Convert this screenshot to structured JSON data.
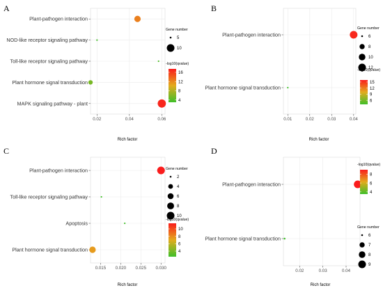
{
  "chart_data": [
    {
      "type": "scatter",
      "panel": "A",
      "xlabel": "Rich factor",
      "xlim": [
        0.016,
        0.062
      ],
      "xticks": [
        0.02,
        0.04,
        0.06
      ],
      "xtick_labels": [
        "0.02",
        "0.04",
        "0.06"
      ],
      "categories": [
        "Plant-pathogen interaction",
        "NOD-like receptor signaling pathway",
        "Toll-like receptor signaling pathway",
        "Plant hormone signal transduction",
        "MAPK signaling pathway - plant"
      ],
      "points": [
        {
          "pathway": "Plant-pathogen interaction",
          "rich_factor": 0.045,
          "gene_number": 8,
          "neg_log10_qvalue": 12.5
        },
        {
          "pathway": "NOD-like receptor signaling pathway",
          "rich_factor": 0.02,
          "gene_number": 1,
          "neg_log10_qvalue": 3.2
        },
        {
          "pathway": "Toll-like receptor signaling pathway",
          "rich_factor": 0.058,
          "gene_number": 2,
          "neg_log10_qvalue": 3.8
        },
        {
          "pathway": "Plant hormone signal transduction",
          "rich_factor": 0.016,
          "gene_number": 6,
          "neg_log10_qvalue": 5.5
        },
        {
          "pathway": "MAPK signaling pathway - plant",
          "rich_factor": 0.06,
          "gene_number": 12,
          "neg_log10_qvalue": 17
        }
      ],
      "size_legend": {
        "title": "Gene number",
        "values": [
          5,
          10
        ],
        "labels": [
          "5",
          "10"
        ]
      },
      "color_legend": {
        "title": "-log10(qvalue)",
        "range": [
          3,
          17.5
        ],
        "ticks": [
          4,
          8,
          12,
          16
        ],
        "labels": [
          "4",
          "8",
          "12",
          "16"
        ]
      }
    },
    {
      "type": "scatter",
      "panel": "B",
      "xlabel": "Rich factor",
      "xlim": [
        0.008,
        0.041
      ],
      "xticks": [
        0.01,
        0.02,
        0.03,
        0.04
      ],
      "xtick_labels": [
        "0.01",
        "0.02",
        "0.03",
        "0.04"
      ],
      "categories": [
        "Plant-pathogen interaction",
        "Plant hormone signal transduction"
      ],
      "points": [
        {
          "pathway": "Plant-pathogen interaction",
          "rich_factor": 0.04,
          "gene_number": 12,
          "neg_log10_qvalue": 15.5
        },
        {
          "pathway": "Plant hormone signal transduction",
          "rich_factor": 0.01,
          "gene_number": 4,
          "neg_log10_qvalue": 4
        }
      ],
      "size_legend": {
        "title": "Gene number",
        "values": [
          6,
          8,
          10,
          12
        ],
        "labels": [
          "6",
          "8",
          "10",
          "12"
        ]
      },
      "color_legend": {
        "title": "-log10(qvalue)",
        "range": [
          4,
          16
        ],
        "ticks": [
          6,
          9,
          12,
          15
        ],
        "labels": [
          "6",
          "9",
          "12",
          "15"
        ]
      }
    },
    {
      "type": "scatter",
      "panel": "C",
      "xlabel": "Rich factor",
      "xlim": [
        0.0125,
        0.031
      ],
      "xticks": [
        0.015,
        0.02,
        0.025,
        0.03
      ],
      "xtick_labels": [
        "0.015",
        "0.020",
        "0.025",
        "0.030"
      ],
      "categories": [
        "Plant-pathogen interaction",
        "Toll-like receptor signaling pathway",
        "Apoptosis",
        "Plant hormone signal transduction"
      ],
      "points": [
        {
          "pathway": "Plant-pathogen interaction",
          "rich_factor": 0.03,
          "gene_number": 10,
          "neg_log10_qvalue": 11.5
        },
        {
          "pathway": "Toll-like receptor signaling pathway",
          "rich_factor": 0.0152,
          "gene_number": 1,
          "neg_log10_qvalue": 2.6
        },
        {
          "pathway": "Apoptosis",
          "rich_factor": 0.021,
          "gene_number": 1,
          "neg_log10_qvalue": 2.6
        },
        {
          "pathway": "Plant hormone signal transduction",
          "rich_factor": 0.013,
          "gene_number": 7,
          "neg_log10_qvalue": 7.5
        }
      ],
      "size_legend": {
        "title": "Gene number",
        "values": [
          2,
          4,
          6,
          8,
          10
        ],
        "labels": [
          "2",
          "4",
          "6",
          "8",
          "10"
        ]
      },
      "color_legend": {
        "title": "-log10(qvalue)",
        "range": [
          2.5,
          11.5
        ],
        "ticks": [
          4,
          6,
          8,
          10
        ],
        "labels": [
          "4",
          "6",
          "8",
          "10"
        ]
      }
    },
    {
      "type": "scatter",
      "panel": "D",
      "xlabel": "Rich factor",
      "xlim": [
        0.013,
        0.046
      ],
      "xticks": [
        0.02,
        0.03,
        0.04
      ],
      "xtick_labels": [
        "0.02",
        "0.03",
        "0.04"
      ],
      "categories": [
        "Plant-pathogen interaction",
        "Plant hormone signal transduction"
      ],
      "points": [
        {
          "pathway": "Plant-pathogen interaction",
          "rich_factor": 0.045,
          "gene_number": 9,
          "neg_log10_qvalue": 9
        },
        {
          "pathway": "Plant hormone signal transduction",
          "rich_factor": 0.0135,
          "gene_number": 6,
          "neg_log10_qvalue": 3.5
        }
      ],
      "size_legend": {
        "title": "Gene number",
        "values": [
          6,
          7,
          8,
          9
        ],
        "labels": [
          "6",
          "7",
          "8",
          "9"
        ]
      },
      "color_legend": {
        "title": "-log10(qvalue)",
        "range": [
          3.5,
          9
        ],
        "ticks": [
          4,
          6,
          8
        ],
        "labels": [
          "4",
          "6",
          "8"
        ]
      }
    }
  ]
}
